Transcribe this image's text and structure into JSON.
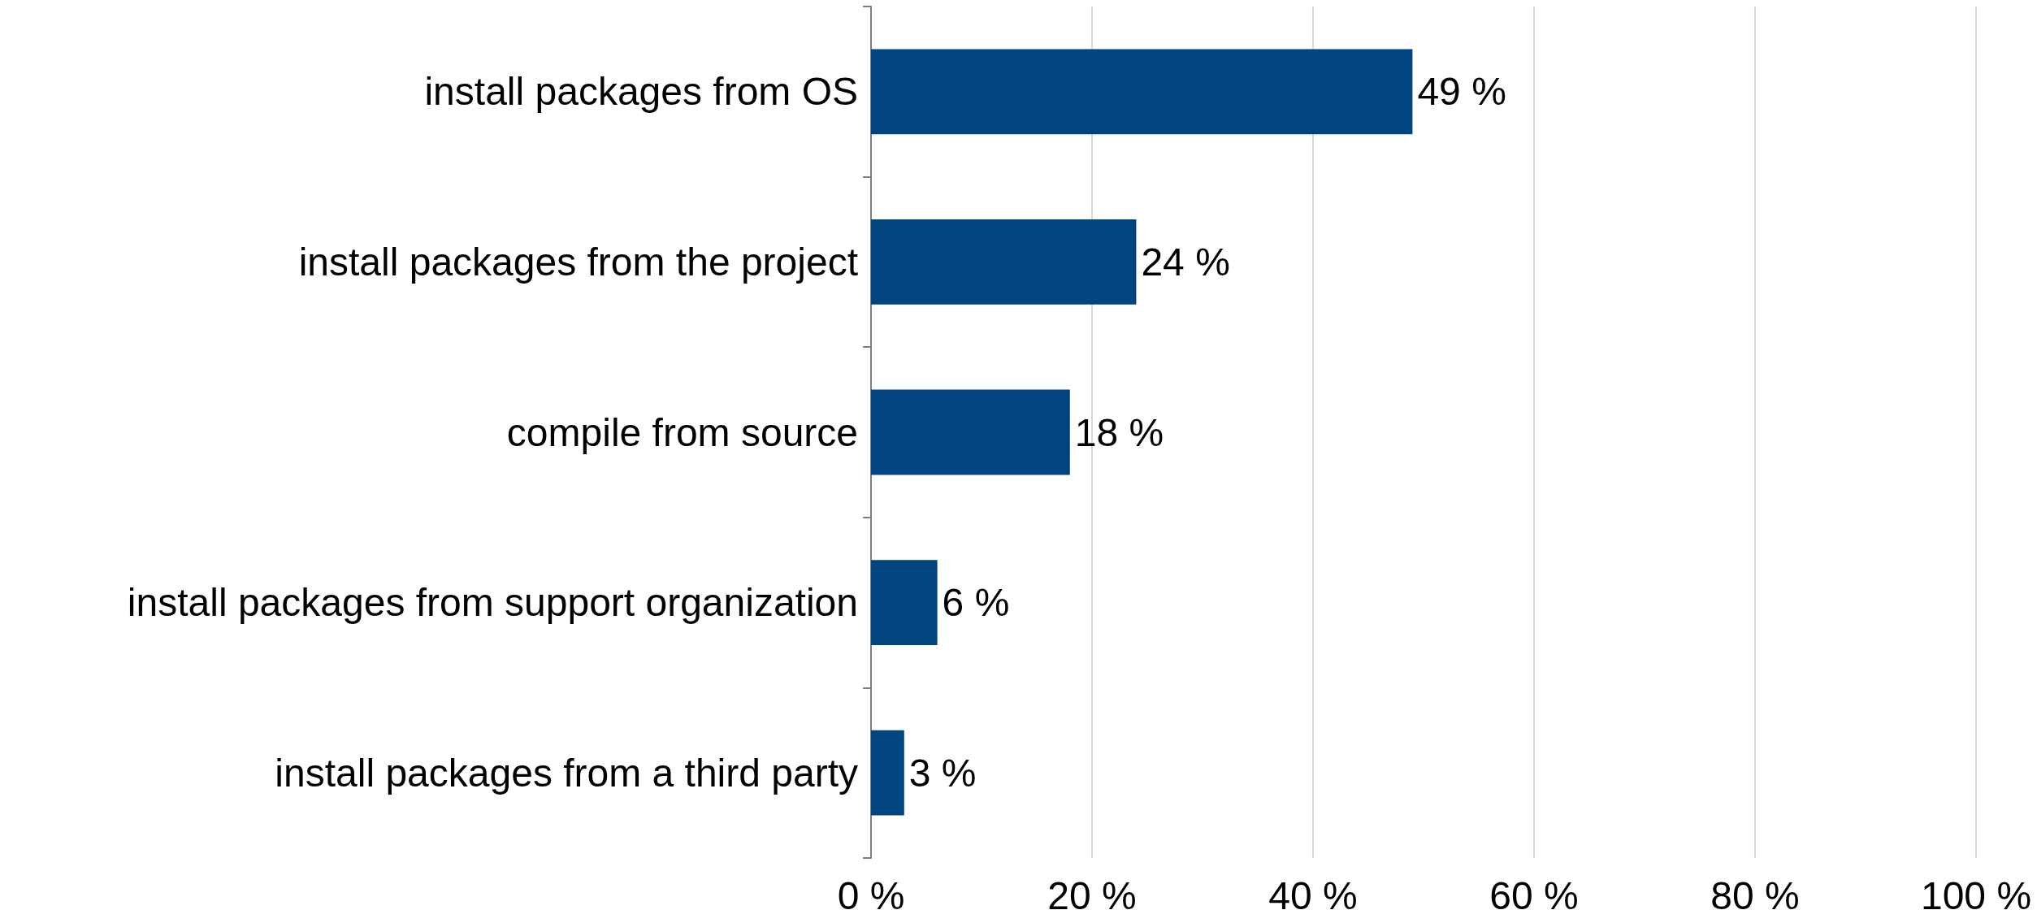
{
  "chart_data": {
    "type": "bar",
    "orientation": "horizontal",
    "categories": [
      "install packages from OS",
      "install packages from the project",
      "compile from source",
      "install packages from support organization",
      "install packages from a third party"
    ],
    "values": [
      49,
      24,
      18,
      6,
      3
    ],
    "value_labels": [
      "49 %",
      "24 %",
      "18 %",
      "6 %",
      "3 %"
    ],
    "color": "#00457f",
    "xlim": [
      0,
      100
    ],
    "xticks": [
      {
        "value": 0,
        "label": "0 %"
      },
      {
        "value": 20,
        "label": "20 %"
      },
      {
        "value": 40,
        "label": "40 %"
      },
      {
        "value": 60,
        "label": "60 %"
      },
      {
        "value": 80,
        "label": "80 %"
      },
      {
        "value": 100,
        "label": "100 %"
      }
    ],
    "grid": "x"
  }
}
